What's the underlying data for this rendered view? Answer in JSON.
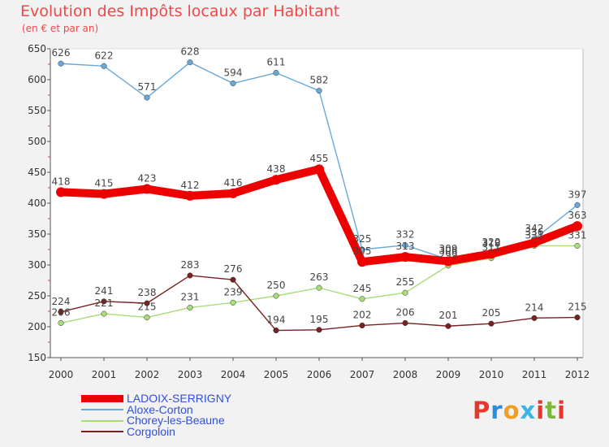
{
  "header": {
    "title": "Evolution des Impôts locaux par Habitant",
    "subtitle": "(en € et par an)"
  },
  "brand": {
    "letters": [
      "P",
      "r",
      "o",
      "x",
      "i",
      "t",
      "i"
    ],
    "colors": [
      "#e8362c",
      "#2a8ee0",
      "#f0a020",
      "#3cb4e8",
      "#e8362c",
      "#7ab83c",
      "#e8362c"
    ]
  },
  "chart_data": {
    "type": "line",
    "title": "Evolution des Impôts locaux par Habitant",
    "subtitle": "(en € et par an)",
    "xlabel": "",
    "ylabel": "",
    "ylim": [
      150,
      650
    ],
    "yticks": [
      150,
      200,
      250,
      300,
      350,
      400,
      450,
      500,
      550,
      600,
      650
    ],
    "grid": false,
    "legend_position": "bottom-left",
    "x": [
      "2000",
      "2001",
      "2002",
      "2003",
      "2004",
      "2005",
      "2006",
      "2007",
      "2008",
      "2009",
      "2010",
      "2011",
      "2012"
    ],
    "series": [
      {
        "name": "LADOIX-SERRIGNY",
        "color": "#ee0000",
        "emphasis": true,
        "values": [
          418,
          415,
          423,
          412,
          416,
          438,
          455,
          305,
          313,
          306,
          318,
          336,
          363
        ]
      },
      {
        "name": "Aloxe-Corton",
        "color": "#6aa8d8",
        "emphasis": false,
        "values": [
          626,
          622,
          571,
          628,
          594,
          611,
          582,
          325,
          332,
          309,
          320,
          342,
          397
        ]
      },
      {
        "name": "Chorey-les-Beaune",
        "color": "#a8dc78",
        "emphasis": false,
        "values": [
          206,
          221,
          215,
          231,
          239,
          250,
          263,
          245,
          255,
          299,
          311,
          331,
          331
        ]
      },
      {
        "name": "Corgoloin",
        "color": "#7a2020",
        "emphasis": false,
        "values": [
          224,
          241,
          238,
          283,
          276,
          194,
          195,
          202,
          206,
          201,
          205,
          214,
          215
        ]
      }
    ]
  }
}
